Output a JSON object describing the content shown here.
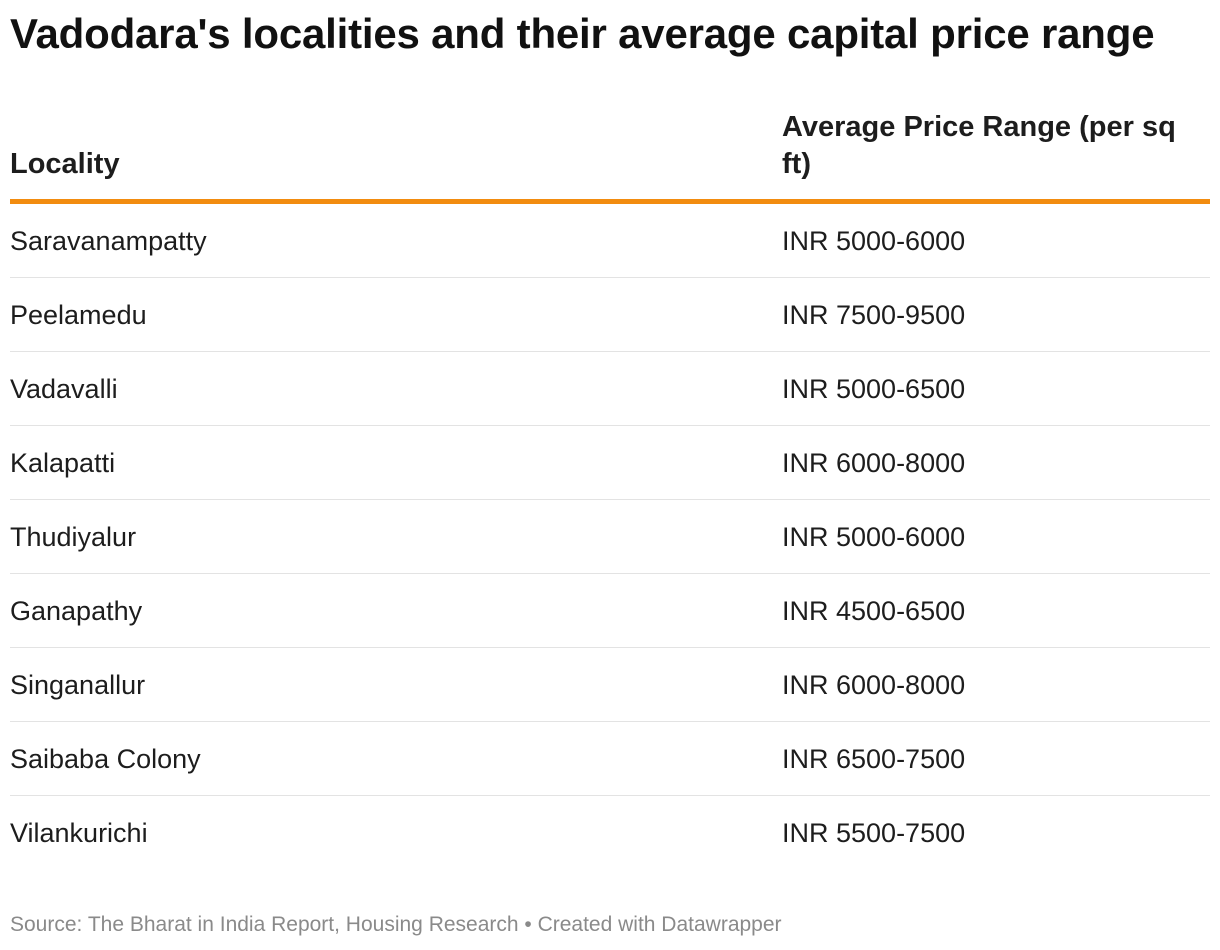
{
  "title": "Vadodara's localities and their average capital price range",
  "footer": "Source: The Bharat in India Report, Housing Research • Created with Datawrapper",
  "colors": {
    "header_rule": "#f28c0f",
    "row_divider": "#e3e3e3",
    "text": "#1d1d1d",
    "footer_text": "#8a8a8a"
  },
  "chart_data": {
    "type": "table",
    "title": "Vadodara's localities and their average capital price range",
    "columns": [
      "Locality",
      "Average Price Range (per sq ft)"
    ],
    "rows": [
      [
        "Saravanampatty",
        "INR 5000-6000"
      ],
      [
        "Peelamedu",
        "INR 7500-9500"
      ],
      [
        "Vadavalli",
        "INR 5000-6500"
      ],
      [
        "Kalapatti",
        "INR 6000-8000"
      ],
      [
        "Thudiyalur",
        "INR 5000-6000"
      ],
      [
        "Ganapathy",
        "INR 4500-6500"
      ],
      [
        "Singanallur",
        "INR 6000-8000"
      ],
      [
        "Saibaba Colony",
        "INR 6500-7500"
      ],
      [
        "Vilankurichi",
        "INR 5500-7500"
      ]
    ]
  }
}
